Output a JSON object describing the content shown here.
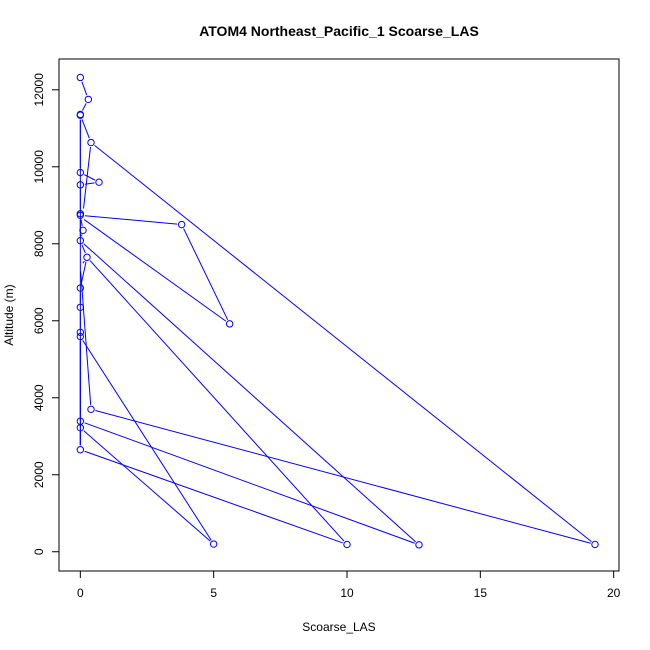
{
  "chart_data": {
    "type": "line",
    "title": "ATOM4 Northeast_Pacific_1 Scoarse_LAS",
    "xlabel": "Scoarse_LAS",
    "ylabel": "Altitude (m)",
    "xlim": [
      -0.8,
      20.2
    ],
    "ylim": [
      -500,
      12800
    ],
    "xticks": [
      0,
      5,
      10,
      15,
      20
    ],
    "yticks": [
      0,
      2000,
      4000,
      6000,
      8000,
      10000,
      12000
    ],
    "grid": false,
    "legend": "none",
    "series": [
      {
        "color": "#0000ff",
        "marker": "open-circle",
        "points": [
          {
            "x": 0.0,
            "y": 12320
          },
          {
            "x": 0.3,
            "y": 11750
          },
          {
            "x": 0.0,
            "y": 11360
          },
          {
            "x": 0.0,
            "y": 11340
          },
          {
            "x": 0.4,
            "y": 10630
          },
          {
            "x": 0.0,
            "y": 9850
          },
          {
            "x": 0.7,
            "y": 9600
          },
          {
            "x": 0.0,
            "y": 9530
          },
          {
            "x": 0.0,
            "y": 8780
          },
          {
            "x": 0.0,
            "y": 8740
          },
          {
            "x": 0.1,
            "y": 8350
          },
          {
            "x": 0.0,
            "y": 8080
          },
          {
            "x": 0.25,
            "y": 7650
          },
          {
            "x": 0.0,
            "y": 6850
          },
          {
            "x": 0.0,
            "y": 6350
          },
          {
            "x": 0.0,
            "y": 5700
          },
          {
            "x": 0.0,
            "y": 5590
          },
          {
            "x": 0.4,
            "y": 3700
          },
          {
            "x": 0.0,
            "y": 3390
          },
          {
            "x": 0.0,
            "y": 3220
          },
          {
            "x": 0.0,
            "y": 2650
          },
          {
            "x": 5.0,
            "y": 200
          },
          {
            "x": 3.8,
            "y": 8500
          },
          {
            "x": 5.6,
            "y": 5920
          },
          {
            "x": 10.0,
            "y": 190
          },
          {
            "x": 12.7,
            "y": 180
          },
          {
            "x": 19.3,
            "y": 190
          }
        ],
        "path": [
          [
            0.0,
            12320
          ],
          [
            0.3,
            11750
          ],
          [
            0.0,
            11360
          ],
          [
            0.0,
            11340
          ],
          [
            0.0,
            9850
          ],
          [
            0.7,
            9600
          ],
          [
            0.0,
            9530
          ],
          [
            0.0,
            8780
          ],
          [
            0.0,
            8740
          ],
          [
            0.1,
            8350
          ],
          [
            0.0,
            8080
          ],
          [
            0.25,
            7650
          ],
          [
            0.0,
            6850
          ],
          [
            0.0,
            6350
          ],
          [
            0.0,
            5700
          ],
          [
            0.0,
            5590
          ],
          [
            0.0,
            3390
          ],
          [
            0.0,
            3220
          ],
          [
            0.0,
            2650
          ],
          [
            0.0,
            11340
          ],
          [
            0.4,
            10630
          ],
          [
            0.1,
            8800
          ],
          [
            0.0,
            8700
          ],
          [
            5.6,
            5920
          ],
          [
            3.8,
            8500
          ],
          [
            0.0,
            8740
          ],
          [
            0.0,
            8080
          ],
          [
            12.7,
            180
          ],
          [
            0.0,
            3390
          ],
          [
            0.0,
            3220
          ],
          [
            5.0,
            200
          ],
          [
            0.0,
            5590
          ],
          [
            0.0,
            2650
          ],
          [
            10.0,
            190
          ],
          [
            0.25,
            7650
          ],
          [
            0.0,
            7400
          ],
          [
            0.4,
            3700
          ],
          [
            19.3,
            190
          ],
          [
            0.4,
            10630
          ]
        ]
      }
    ]
  }
}
